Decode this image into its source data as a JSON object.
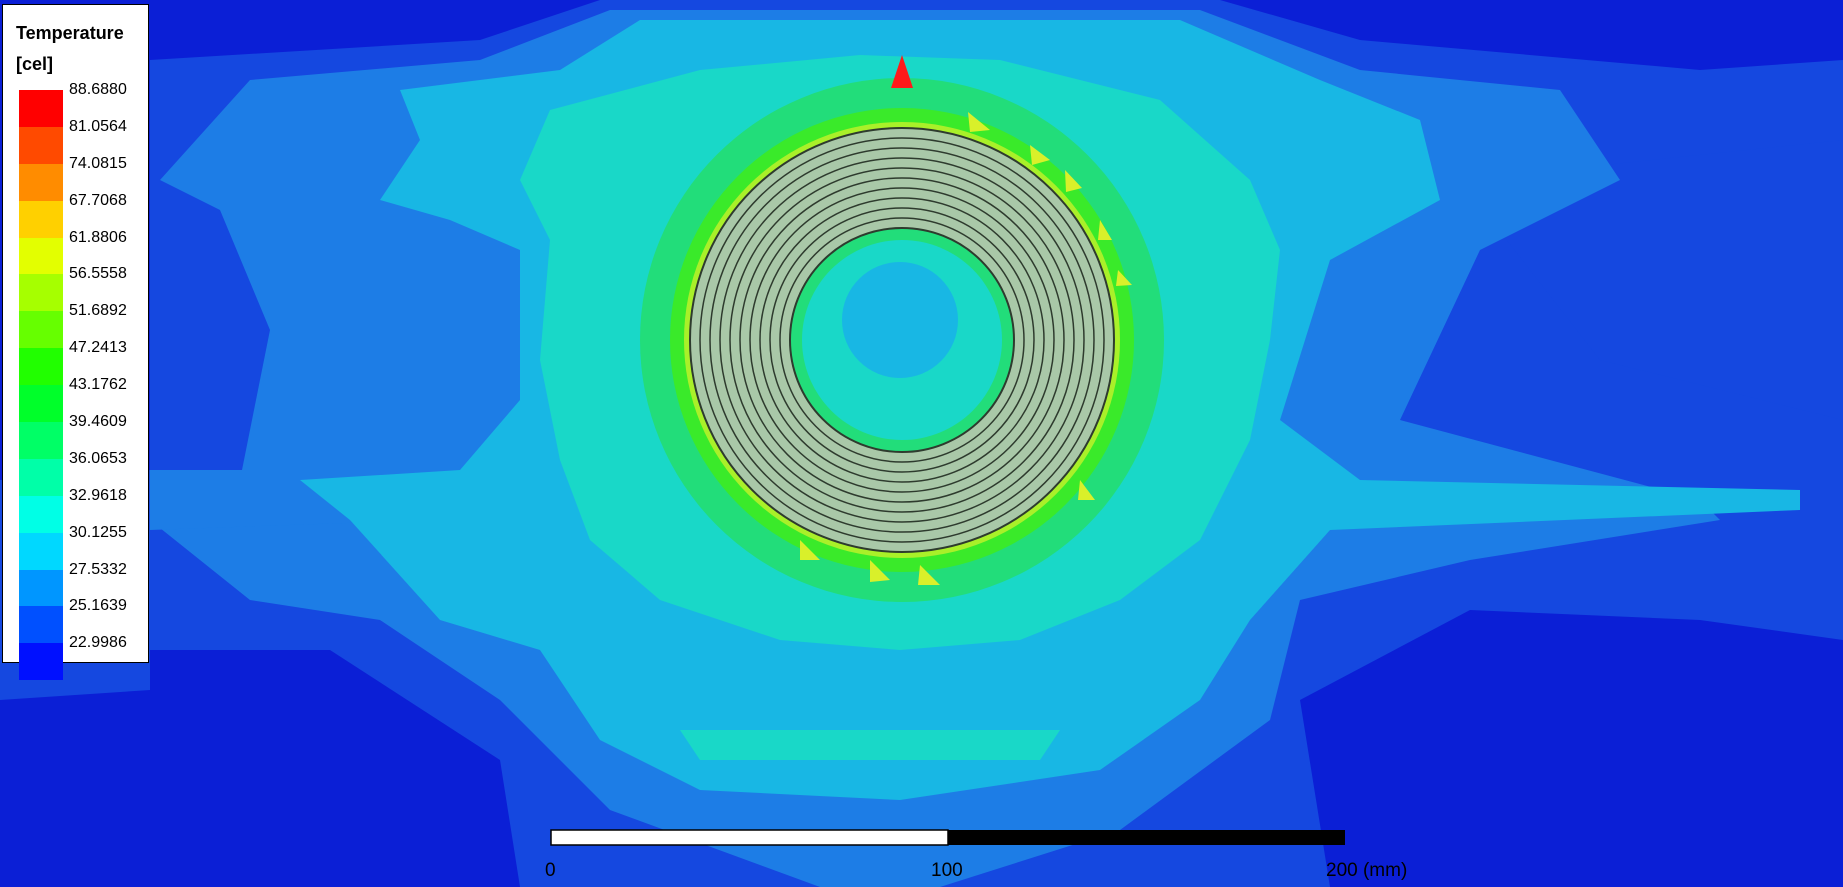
{
  "legend": {
    "title_line1": "Temperature",
    "title_line2": "[cel]",
    "levels": [
      {
        "value": "88.6880",
        "color": "#ff0000"
      },
      {
        "value": "81.0564",
        "color": "#ff4a00"
      },
      {
        "value": "74.0815",
        "color": "#ff8c00"
      },
      {
        "value": "67.7068",
        "color": "#ffd000"
      },
      {
        "value": "61.8806",
        "color": "#e3ff00"
      },
      {
        "value": "56.5558",
        "color": "#a6ff00"
      },
      {
        "value": "51.6892",
        "color": "#66ff00"
      },
      {
        "value": "47.2413",
        "color": "#21ff00"
      },
      {
        "value": "43.1762",
        "color": "#00ff2a"
      },
      {
        "value": "39.4609",
        "color": "#00ff66"
      },
      {
        "value": "36.0653",
        "color": "#00ffa8"
      },
      {
        "value": "32.9618",
        "color": "#00ffe6"
      },
      {
        "value": "30.1255",
        "color": "#00d8ff"
      },
      {
        "value": "27.5332",
        "color": "#0096ff"
      },
      {
        "value": "25.1639",
        "color": "#0050ff"
      },
      {
        "value": "22.9986",
        "color": "#0010ff"
      }
    ]
  },
  "scale_bar": {
    "labels": [
      "0",
      "100",
      "200 (mm)"
    ]
  },
  "colors": {
    "background": "#0b1fd6",
    "field_outer": "#1548e0",
    "field_mid": "#1d7de6",
    "field_cyan": "#18b7e4",
    "field_aqua": "#19d8c8",
    "field_green": "#22dd7a",
    "field_bright_green": "#3aea2a",
    "field_yellow_green": "#a9f029",
    "coil_fill": "#a9c8a8",
    "coil_stroke": "#2e3b2e",
    "marker": "#ff1a1a"
  }
}
